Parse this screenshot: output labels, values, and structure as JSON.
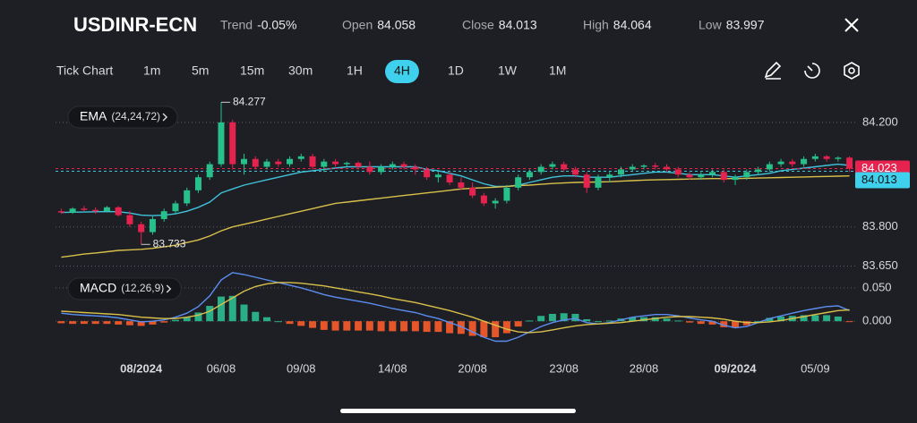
{
  "header": {
    "symbol": "USDINR-ECN",
    "stats": [
      {
        "label": "Trend",
        "value": "-0.05%"
      },
      {
        "label": "Open",
        "value": 84.058
      },
      {
        "label": "Close",
        "value": 84.013
      },
      {
        "label": "High",
        "value": 84.064
      },
      {
        "label": "Low",
        "value": 83.997
      }
    ]
  },
  "toolbar": {
    "items": [
      "Tick Chart",
      "1m",
      "5m",
      "15m",
      "30m",
      "1H",
      "4H",
      "1D",
      "1W",
      "1M"
    ],
    "active_index": 6
  },
  "chart_data": {
    "type": "candlestick",
    "categories": [
      null,
      null,
      null,
      null,
      null,
      null,
      null,
      "08/2024",
      null,
      null,
      null,
      null,
      null,
      null,
      "06/08",
      null,
      null,
      null,
      null,
      null,
      null,
      "09/08",
      null,
      null,
      null,
      null,
      null,
      null,
      null,
      "14/08",
      null,
      null,
      null,
      null,
      null,
      null,
      "20/08",
      null,
      null,
      null,
      null,
      null,
      null,
      null,
      "23/08",
      null,
      null,
      null,
      null,
      null,
      null,
      "28/08",
      null,
      null,
      null,
      null,
      null,
      null,
      null,
      "09/2024",
      null,
      null,
      null,
      null,
      null,
      null,
      "05/09",
      null,
      null,
      null
    ],
    "up_color": "#27c08a",
    "down_color": "#e6224f",
    "candles": [
      [
        83.86,
        83.87,
        83.85,
        83.855
      ],
      [
        83.855,
        83.875,
        83.85,
        83.87
      ],
      [
        83.87,
        83.88,
        83.86,
        83.865
      ],
      [
        83.865,
        83.875,
        83.85,
        83.86
      ],
      [
        83.86,
        83.88,
        83.855,
        83.875
      ],
      [
        83.875,
        83.88,
        83.84,
        83.845
      ],
      [
        83.845,
        83.86,
        83.8,
        83.81
      ],
      [
        83.81,
        83.82,
        83.733,
        83.78
      ],
      [
        83.78,
        83.84,
        83.77,
        83.83
      ],
      [
        83.83,
        83.87,
        83.82,
        83.86
      ],
      [
        83.86,
        83.9,
        83.85,
        83.89
      ],
      [
        83.89,
        83.95,
        83.88,
        83.94
      ],
      [
        83.94,
        84.0,
        83.93,
        83.99
      ],
      [
        83.99,
        84.05,
        83.98,
        84.04
      ],
      [
        84.04,
        84.277,
        84.03,
        84.2
      ],
      [
        84.2,
        84.21,
        84.02,
        84.04
      ],
      [
        84.04,
        84.08,
        84.0,
        84.06
      ],
      [
        84.06,
        84.07,
        84.02,
        84.03
      ],
      [
        84.03,
        84.06,
        84.02,
        84.05
      ],
      [
        84.05,
        84.06,
        84.03,
        84.04
      ],
      [
        84.04,
        84.07,
        84.03,
        84.06
      ],
      [
        84.06,
        84.08,
        84.05,
        84.07
      ],
      [
        84.07,
        84.08,
        84.02,
        84.03
      ],
      [
        84.03,
        84.06,
        84.01,
        84.05
      ],
      [
        84.05,
        84.06,
        84.03,
        84.04
      ],
      [
        84.04,
        84.05,
        84.03,
        84.045
      ],
      [
        84.045,
        84.05,
        84.02,
        84.03
      ],
      [
        84.03,
        84.05,
        84.0,
        84.01
      ],
      [
        84.01,
        84.04,
        84.0,
        84.03
      ],
      [
        84.03,
        84.05,
        84.02,
        84.04
      ],
      [
        84.04,
        84.05,
        84.02,
        84.03
      ],
      [
        84.03,
        84.04,
        84.0,
        84.02
      ],
      [
        84.02,
        84.03,
        83.98,
        83.99
      ],
      [
        83.99,
        84.01,
        83.97,
        84.0
      ],
      [
        84.0,
        84.01,
        83.96,
        83.97
      ],
      [
        83.97,
        83.99,
        83.94,
        83.95
      ],
      [
        83.95,
        83.97,
        83.91,
        83.92
      ],
      [
        83.92,
        83.93,
        83.88,
        83.89
      ],
      [
        83.89,
        83.91,
        83.87,
        83.9
      ],
      [
        83.9,
        83.96,
        83.89,
        83.95
      ],
      [
        83.95,
        84.0,
        83.94,
        83.99
      ],
      [
        83.99,
        84.02,
        83.98,
        84.01
      ],
      [
        84.01,
        84.04,
        84.0,
        84.03
      ],
      [
        84.03,
        84.05,
        84.02,
        84.04
      ],
      [
        84.04,
        84.05,
        84.01,
        84.02
      ],
      [
        84.02,
        84.03,
        83.99,
        84.0
      ],
      [
        84.0,
        84.01,
        83.93,
        83.95
      ],
      [
        83.95,
        84.0,
        83.94,
        83.99
      ],
      [
        83.99,
        84.01,
        83.97,
        84.0
      ],
      [
        84.0,
        84.03,
        83.99,
        84.02
      ],
      [
        84.02,
        84.04,
        84.01,
        84.03
      ],
      [
        84.03,
        84.04,
        84.02,
        84.035
      ],
      [
        84.035,
        84.045,
        84.02,
        84.03
      ],
      [
        84.03,
        84.04,
        84.01,
        84.02
      ],
      [
        84.02,
        84.03,
        83.99,
        84.0
      ],
      [
        84.0,
        84.01,
        83.98,
        83.99
      ],
      [
        83.99,
        84.01,
        83.98,
        84.0
      ],
      [
        84.0,
        84.02,
        83.99,
        84.01
      ],
      [
        84.01,
        84.02,
        83.97,
        83.98
      ],
      [
        83.98,
        84.0,
        83.96,
        83.99
      ],
      [
        83.99,
        84.02,
        83.98,
        84.01
      ],
      [
        84.01,
        84.03,
        84.0,
        84.02
      ],
      [
        84.02,
        84.05,
        84.01,
        84.04
      ],
      [
        84.04,
        84.06,
        84.03,
        84.05
      ],
      [
        84.05,
        84.06,
        84.03,
        84.04
      ],
      [
        84.04,
        84.07,
        84.03,
        84.06
      ],
      [
        84.06,
        84.08,
        84.05,
        84.07
      ],
      [
        84.07,
        84.075,
        84.05,
        84.06
      ],
      [
        84.06,
        84.07,
        84.05,
        84.065
      ],
      [
        84.065,
        84.07,
        84.01,
        84.023
      ]
    ],
    "ylim": [
      83.645,
      84.285
    ],
    "yticks": [
      {
        "value": 84.2,
        "label": "84.200"
      },
      {
        "value": 83.8,
        "label": "83.800"
      },
      {
        "value": 83.65,
        "label": "83.650"
      }
    ],
    "ema": {
      "name": "EMA",
      "params": "(24,24,72)",
      "series": [
        {
          "color": "#3fc3dc",
          "values": [
            83.855,
            83.856,
            83.857,
            83.858,
            83.859,
            83.858,
            83.853,
            83.845,
            83.843,
            83.845,
            83.85,
            83.86,
            83.875,
            83.895,
            83.93,
            83.945,
            83.96,
            83.97,
            83.98,
            83.99,
            84.0,
            84.01,
            84.015,
            84.02,
            84.025,
            84.03,
            84.03,
            84.03,
            84.03,
            84.03,
            84.03,
            84.03,
            84.02,
            84.015,
            84.005,
            83.995,
            83.98,
            83.965,
            83.955,
            83.955,
            83.96,
            83.97,
            83.98,
            83.99,
            83.995,
            83.995,
            83.99,
            83.99,
            83.99,
            83.995,
            84.0,
            84.005,
            84.01,
            84.01,
            84.005,
            84.0,
            84.0,
            84.0,
            83.995,
            83.99,
            83.995,
            84.0,
            84.005,
            84.015,
            84.02,
            84.025,
            84.03,
            84.035,
            84.04,
            84.035
          ]
        },
        {
          "color": "#d8c04a",
          "values": [
            83.684,
            83.69,
            83.696,
            83.7,
            83.705,
            83.71,
            83.712,
            83.714,
            83.718,
            83.724,
            83.73,
            83.74,
            83.75,
            83.765,
            83.785,
            83.8,
            83.81,
            83.82,
            83.83,
            83.84,
            83.85,
            83.86,
            83.87,
            83.88,
            83.89,
            83.895,
            83.9,
            83.905,
            83.91,
            83.915,
            83.92,
            83.925,
            83.93,
            83.935,
            83.94,
            83.945,
            83.948,
            83.95,
            83.952,
            83.955,
            83.958,
            83.96,
            83.963,
            83.966,
            83.968,
            83.97,
            83.971,
            83.972,
            83.973,
            83.975,
            83.977,
            83.979,
            83.98,
            83.981,
            83.982,
            83.983,
            83.984,
            83.985,
            83.985,
            83.985,
            83.986,
            83.987,
            83.988,
            83.989,
            83.99,
            83.991,
            83.992,
            83.993,
            83.994,
            83.995
          ]
        }
      ]
    },
    "macd": {
      "name": "MACD",
      "params": "(12,26,9)",
      "ylim": [
        -0.04,
        0.07
      ],
      "yticks": [
        {
          "value": 0.05,
          "label": "0.050"
        },
        {
          "value": 0,
          "label": "0.000"
        }
      ],
      "macd_line": {
        "color": "#5b8ef0",
        "values": [
          0.012,
          0.01,
          0.009,
          0.008,
          0.007,
          0.005,
          0.002,
          -0.001,
          0.0,
          0.002,
          0.006,
          0.012,
          0.022,
          0.038,
          0.062,
          0.073,
          0.07,
          0.066,
          0.062,
          0.058,
          0.054,
          0.05,
          0.045,
          0.04,
          0.036,
          0.033,
          0.03,
          0.027,
          0.023,
          0.019,
          0.016,
          0.013,
          0.008,
          0.004,
          -0.002,
          -0.008,
          -0.016,
          -0.024,
          -0.03,
          -0.03,
          -0.024,
          -0.016,
          -0.008,
          -0.002,
          0.002,
          0.004,
          -0.002,
          -0.004,
          -0.002,
          0.002,
          0.006,
          0.008,
          0.01,
          0.01,
          0.008,
          0.005,
          0.002,
          0.0,
          -0.006,
          -0.01,
          -0.008,
          -0.002,
          0.004,
          0.008,
          0.012,
          0.016,
          0.019,
          0.022,
          0.023,
          0.016
        ]
      },
      "signal_line": {
        "color": "#d8c04a",
        "values": [
          0.015,
          0.014,
          0.013,
          0.012,
          0.011,
          0.01,
          0.008,
          0.006,
          0.005,
          0.004,
          0.004,
          0.006,
          0.009,
          0.015,
          0.025,
          0.035,
          0.045,
          0.052,
          0.056,
          0.058,
          0.058,
          0.057,
          0.055,
          0.053,
          0.05,
          0.047,
          0.044,
          0.041,
          0.038,
          0.034,
          0.031,
          0.028,
          0.024,
          0.02,
          0.016,
          0.011,
          0.006,
          0.0,
          -0.006,
          -0.012,
          -0.016,
          -0.017,
          -0.016,
          -0.013,
          -0.01,
          -0.007,
          -0.005,
          -0.004,
          -0.003,
          -0.002,
          0.0,
          0.002,
          0.004,
          0.006,
          0.007,
          0.007,
          0.006,
          0.005,
          0.003,
          0.0,
          -0.002,
          -0.002,
          -0.001,
          0.001,
          0.004,
          0.007,
          0.01,
          0.013,
          0.016,
          0.017
        ]
      },
      "histogram": {
        "up_color": "#2aae86",
        "down_color": "#e5572b",
        "values": [
          -0.003,
          -0.004,
          -0.004,
          -0.004,
          -0.004,
          -0.005,
          -0.006,
          -0.007,
          -0.005,
          -0.002,
          0.002,
          0.006,
          0.013,
          0.023,
          0.037,
          0.038,
          0.025,
          0.014,
          0.006,
          0.0,
          -0.004,
          -0.007,
          -0.01,
          -0.013,
          -0.014,
          -0.014,
          -0.014,
          -0.014,
          -0.015,
          -0.015,
          -0.015,
          -0.015,
          -0.016,
          -0.016,
          -0.018,
          -0.019,
          -0.022,
          -0.024,
          -0.024,
          -0.018,
          -0.008,
          0.001,
          0.008,
          0.011,
          0.012,
          0.011,
          0.003,
          0.0,
          0.001,
          0.004,
          0.006,
          0.006,
          0.006,
          0.004,
          0.001,
          -0.002,
          -0.004,
          -0.005,
          -0.009,
          -0.01,
          -0.006,
          0.0,
          0.005,
          0.007,
          0.008,
          0.009,
          0.009,
          0.009,
          0.007,
          -0.001
        ]
      }
    }
  }
}
